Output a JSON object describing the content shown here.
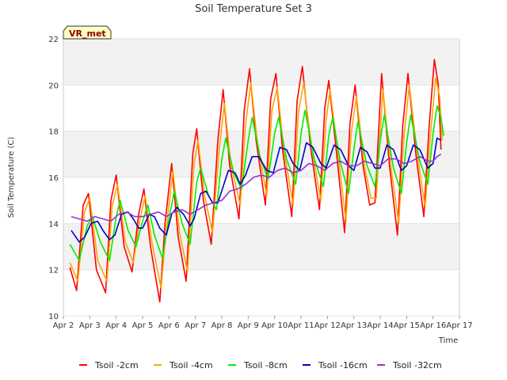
{
  "chart_data": {
    "type": "line",
    "title": "Soil Temperature Set 3",
    "xlabel": "Time",
    "ylabel": "Soil Temperature (C)",
    "badge": "VR_met",
    "xlim": [
      2.0,
      17.0
    ],
    "ylim": [
      10,
      22
    ],
    "x_ticks": [
      {
        "x": 2,
        "label": "Apr 2"
      },
      {
        "x": 3,
        "label": "Apr 3"
      },
      {
        "x": 4,
        "label": "Apr 4"
      },
      {
        "x": 5,
        "label": "Apr 5"
      },
      {
        "x": 6,
        "label": "Apr 6"
      },
      {
        "x": 7,
        "label": "Apr 7"
      },
      {
        "x": 8,
        "label": "Apr 8"
      },
      {
        "x": 9,
        "label": "Apr 9"
      },
      {
        "x": 10,
        "label": "Apr 10"
      },
      {
        "x": 11,
        "label": "Apr 11"
      },
      {
        "x": 12,
        "label": "Apr 12"
      },
      {
        "x": 13,
        "label": "Apr 13"
      },
      {
        "x": 14,
        "label": "Apr 14"
      },
      {
        "x": 15,
        "label": "Apr 15"
      },
      {
        "x": 16,
        "label": "Apr 16"
      },
      {
        "x": 17,
        "label": "Apr 17"
      }
    ],
    "y_ticks": [
      10,
      12,
      14,
      16,
      18,
      20,
      22
    ],
    "bands": [
      [
        12,
        14
      ],
      [
        16,
        18
      ],
      [
        20,
        22
      ]
    ],
    "legend_position": "bottom",
    "series": [
      {
        "name": "Tsoil -2cm",
        "color": "#ff0000",
        "points": [
          [
            2.25,
            12.1
          ],
          [
            2.5,
            11.1
          ],
          [
            2.75,
            14.8
          ],
          [
            2.95,
            15.3
          ],
          [
            3.25,
            12.0
          ],
          [
            3.6,
            11.0
          ],
          [
            3.8,
            15.0
          ],
          [
            4.0,
            16.1
          ],
          [
            4.3,
            13.0
          ],
          [
            4.6,
            11.9
          ],
          [
            4.85,
            14.4
          ],
          [
            5.05,
            15.5
          ],
          [
            5.3,
            13.0
          ],
          [
            5.65,
            10.6
          ],
          [
            5.85,
            14.0
          ],
          [
            6.1,
            16.6
          ],
          [
            6.35,
            13.4
          ],
          [
            6.65,
            11.5
          ],
          [
            6.9,
            17.0
          ],
          [
            7.05,
            18.1
          ],
          [
            7.3,
            15.0
          ],
          [
            7.6,
            13.1
          ],
          [
            7.85,
            17.6
          ],
          [
            8.05,
            19.8
          ],
          [
            8.3,
            16.5
          ],
          [
            8.65,
            14.2
          ],
          [
            8.85,
            18.9
          ],
          [
            9.05,
            20.7
          ],
          [
            9.3,
            17.6
          ],
          [
            9.65,
            14.8
          ],
          [
            9.85,
            19.4
          ],
          [
            10.05,
            20.5
          ],
          [
            10.3,
            17.2
          ],
          [
            10.65,
            14.3
          ],
          [
            10.85,
            19.3
          ],
          [
            11.05,
            20.8
          ],
          [
            11.35,
            17.4
          ],
          [
            11.7,
            14.6
          ],
          [
            11.9,
            19.0
          ],
          [
            12.05,
            20.2
          ],
          [
            12.35,
            17.0
          ],
          [
            12.65,
            13.6
          ],
          [
            12.85,
            18.3
          ],
          [
            13.05,
            20.0
          ],
          [
            13.35,
            16.5
          ],
          [
            13.6,
            14.8
          ],
          [
            13.8,
            14.9
          ],
          [
            14.05,
            20.5
          ],
          [
            14.35,
            16.5
          ],
          [
            14.65,
            13.5
          ],
          [
            14.85,
            18.2
          ],
          [
            15.05,
            20.5
          ],
          [
            15.35,
            17.0
          ],
          [
            15.65,
            14.3
          ],
          [
            15.85,
            18.2
          ],
          [
            16.05,
            21.1
          ],
          [
            16.2,
            20.0
          ],
          [
            16.3,
            17.2
          ]
        ]
      },
      {
        "name": "Tsoil -4cm",
        "color": "#ffa500",
        "points": [
          [
            2.25,
            12.3
          ],
          [
            2.55,
            11.5
          ],
          [
            2.8,
            14.5
          ],
          [
            3.0,
            15.1
          ],
          [
            3.3,
            12.4
          ],
          [
            3.65,
            11.5
          ],
          [
            3.85,
            14.8
          ],
          [
            4.05,
            15.7
          ],
          [
            4.35,
            13.2
          ],
          [
            4.65,
            12.3
          ],
          [
            4.9,
            14.2
          ],
          [
            5.1,
            15.2
          ],
          [
            5.35,
            13.2
          ],
          [
            5.7,
            11.2
          ],
          [
            5.9,
            13.8
          ],
          [
            6.15,
            16.3
          ],
          [
            6.4,
            13.6
          ],
          [
            6.7,
            11.9
          ],
          [
            6.95,
            16.6
          ],
          [
            7.1,
            17.6
          ],
          [
            7.35,
            15.2
          ],
          [
            7.65,
            13.6
          ],
          [
            7.9,
            17.2
          ],
          [
            8.1,
            19.2
          ],
          [
            8.35,
            16.5
          ],
          [
            8.7,
            14.8
          ],
          [
            8.9,
            18.3
          ],
          [
            9.1,
            20.1
          ],
          [
            9.35,
            17.5
          ],
          [
            9.7,
            15.2
          ],
          [
            9.9,
            18.9
          ],
          [
            10.1,
            19.9
          ],
          [
            10.35,
            17.2
          ],
          [
            10.7,
            14.8
          ],
          [
            10.9,
            18.8
          ],
          [
            11.1,
            20.1
          ],
          [
            11.4,
            17.3
          ],
          [
            11.75,
            15.0
          ],
          [
            11.95,
            18.5
          ],
          [
            12.1,
            19.8
          ],
          [
            12.4,
            17.0
          ],
          [
            12.7,
            14.1
          ],
          [
            12.9,
            17.9
          ],
          [
            13.1,
            19.5
          ],
          [
            13.4,
            16.5
          ],
          [
            13.65,
            15.1
          ],
          [
            13.85,
            15.1
          ],
          [
            14.1,
            19.8
          ],
          [
            14.4,
            16.5
          ],
          [
            14.7,
            14.0
          ],
          [
            14.9,
            17.8
          ],
          [
            15.1,
            20.0
          ],
          [
            15.4,
            17.0
          ],
          [
            15.7,
            14.7
          ],
          [
            15.9,
            17.8
          ],
          [
            16.1,
            20.3
          ],
          [
            16.25,
            19.5
          ],
          [
            16.35,
            17.6
          ]
        ]
      },
      {
        "name": "Tsoil -8cm",
        "color": "#00ee00",
        "points": [
          [
            2.25,
            13.1
          ],
          [
            2.6,
            12.4
          ],
          [
            2.9,
            13.9
          ],
          [
            3.1,
            14.3
          ],
          [
            3.4,
            13.2
          ],
          [
            3.75,
            12.4
          ],
          [
            4.0,
            14.3
          ],
          [
            4.15,
            15.0
          ],
          [
            4.45,
            13.7
          ],
          [
            4.75,
            13.0
          ],
          [
            5.0,
            14.1
          ],
          [
            5.2,
            14.8
          ],
          [
            5.45,
            13.5
          ],
          [
            5.75,
            12.5
          ],
          [
            6.0,
            14.2
          ],
          [
            6.2,
            15.4
          ],
          [
            6.5,
            14.0
          ],
          [
            6.8,
            13.1
          ],
          [
            7.05,
            15.8
          ],
          [
            7.2,
            16.4
          ],
          [
            7.5,
            15.2
          ],
          [
            7.8,
            14.6
          ],
          [
            8.0,
            16.8
          ],
          [
            8.15,
            17.7
          ],
          [
            8.45,
            16.2
          ],
          [
            8.75,
            15.5
          ],
          [
            9.0,
            17.6
          ],
          [
            9.15,
            18.6
          ],
          [
            9.45,
            16.9
          ],
          [
            9.75,
            15.9
          ],
          [
            10.0,
            17.9
          ],
          [
            10.15,
            18.6
          ],
          [
            10.45,
            16.8
          ],
          [
            10.8,
            15.7
          ],
          [
            11.0,
            17.9
          ],
          [
            11.15,
            18.9
          ],
          [
            11.5,
            16.8
          ],
          [
            11.85,
            15.6
          ],
          [
            12.05,
            17.8
          ],
          [
            12.2,
            18.6
          ],
          [
            12.5,
            16.6
          ],
          [
            12.8,
            15.3
          ],
          [
            13.0,
            17.2
          ],
          [
            13.15,
            18.4
          ],
          [
            13.5,
            16.5
          ],
          [
            13.8,
            15.6
          ],
          [
            14.0,
            17.6
          ],
          [
            14.15,
            18.7
          ],
          [
            14.5,
            16.4
          ],
          [
            14.8,
            15.3
          ],
          [
            15.0,
            17.5
          ],
          [
            15.15,
            18.7
          ],
          [
            15.5,
            16.7
          ],
          [
            15.8,
            15.7
          ],
          [
            16.0,
            17.9
          ],
          [
            16.15,
            19.1
          ],
          [
            16.3,
            18.6
          ],
          [
            16.4,
            17.8
          ]
        ]
      },
      {
        "name": "Tsoil -16cm",
        "color": "#0000cc",
        "points": [
          [
            2.3,
            13.7
          ],
          [
            2.6,
            13.2
          ],
          [
            2.8,
            13.4
          ],
          [
            3.05,
            14.0
          ],
          [
            3.3,
            14.1
          ],
          [
            3.5,
            13.7
          ],
          [
            3.75,
            13.3
          ],
          [
            3.95,
            13.5
          ],
          [
            4.2,
            14.4
          ],
          [
            4.45,
            14.5
          ],
          [
            4.65,
            14.2
          ],
          [
            4.85,
            13.8
          ],
          [
            5.0,
            13.8
          ],
          [
            5.25,
            14.4
          ],
          [
            5.45,
            14.3
          ],
          [
            5.65,
            13.8
          ],
          [
            5.9,
            13.5
          ],
          [
            6.1,
            14.4
          ],
          [
            6.3,
            14.7
          ],
          [
            6.55,
            14.4
          ],
          [
            6.8,
            13.9
          ],
          [
            6.95,
            14.2
          ],
          [
            7.2,
            15.3
          ],
          [
            7.4,
            15.4
          ],
          [
            7.65,
            14.9
          ],
          [
            7.85,
            14.9
          ],
          [
            8.05,
            15.6
          ],
          [
            8.25,
            16.3
          ],
          [
            8.5,
            16.2
          ],
          [
            8.7,
            15.7
          ],
          [
            8.9,
            16.1
          ],
          [
            9.15,
            16.9
          ],
          [
            9.4,
            16.9
          ],
          [
            9.7,
            16.3
          ],
          [
            9.95,
            16.2
          ],
          [
            10.2,
            17.3
          ],
          [
            10.45,
            17.2
          ],
          [
            10.7,
            16.6
          ],
          [
            10.95,
            16.3
          ],
          [
            11.2,
            17.5
          ],
          [
            11.45,
            17.3
          ],
          [
            11.75,
            16.6
          ],
          [
            11.95,
            16.4
          ],
          [
            12.25,
            17.4
          ],
          [
            12.5,
            17.2
          ],
          [
            12.8,
            16.5
          ],
          [
            13.0,
            16.3
          ],
          [
            13.25,
            17.3
          ],
          [
            13.5,
            17.1
          ],
          [
            13.8,
            16.4
          ],
          [
            14.0,
            16.4
          ],
          [
            14.25,
            17.4
          ],
          [
            14.5,
            17.2
          ],
          [
            14.8,
            16.3
          ],
          [
            15.0,
            16.5
          ],
          [
            15.25,
            17.4
          ],
          [
            15.5,
            17.2
          ],
          [
            15.8,
            16.4
          ],
          [
            16.0,
            16.6
          ],
          [
            16.15,
            17.7
          ],
          [
            16.3,
            17.6
          ]
        ]
      },
      {
        "name": "Tsoil -32cm",
        "color": "#9932cc",
        "points": [
          [
            2.3,
            14.3
          ],
          [
            2.6,
            14.2
          ],
          [
            2.9,
            14.1
          ],
          [
            3.2,
            14.3
          ],
          [
            3.5,
            14.2
          ],
          [
            3.8,
            14.1
          ],
          [
            4.1,
            14.4
          ],
          [
            4.4,
            14.5
          ],
          [
            4.7,
            14.3
          ],
          [
            5.0,
            14.3
          ],
          [
            5.3,
            14.4
          ],
          [
            5.6,
            14.5
          ],
          [
            5.9,
            14.3
          ],
          [
            6.2,
            14.5
          ],
          [
            6.5,
            14.6
          ],
          [
            6.8,
            14.4
          ],
          [
            7.1,
            14.6
          ],
          [
            7.4,
            14.8
          ],
          [
            7.7,
            14.9
          ],
          [
            8.0,
            15.0
          ],
          [
            8.3,
            15.4
          ],
          [
            8.6,
            15.5
          ],
          [
            8.9,
            15.7
          ],
          [
            9.2,
            16.0
          ],
          [
            9.5,
            16.1
          ],
          [
            9.8,
            16.0
          ],
          [
            10.1,
            16.3
          ],
          [
            10.4,
            16.4
          ],
          [
            10.7,
            16.2
          ],
          [
            11.0,
            16.3
          ],
          [
            11.3,
            16.6
          ],
          [
            11.6,
            16.5
          ],
          [
            11.9,
            16.3
          ],
          [
            12.2,
            16.6
          ],
          [
            12.5,
            16.7
          ],
          [
            12.8,
            16.5
          ],
          [
            13.1,
            16.5
          ],
          [
            13.4,
            16.7
          ],
          [
            13.7,
            16.6
          ],
          [
            14.0,
            16.5
          ],
          [
            14.3,
            16.8
          ],
          [
            14.6,
            16.8
          ],
          [
            14.9,
            16.6
          ],
          [
            15.2,
            16.7
          ],
          [
            15.5,
            16.9
          ],
          [
            15.8,
            16.7
          ],
          [
            16.0,
            16.7
          ],
          [
            16.15,
            16.9
          ],
          [
            16.3,
            17.0
          ]
        ]
      }
    ]
  }
}
